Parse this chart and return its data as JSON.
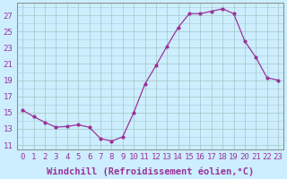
{
  "x": [
    0,
    1,
    2,
    3,
    4,
    5,
    6,
    7,
    8,
    9,
    10,
    11,
    12,
    13,
    14,
    15,
    16,
    17,
    18,
    19,
    20,
    21,
    22,
    23
  ],
  "y": [
    15.3,
    14.5,
    13.8,
    13.2,
    13.3,
    13.5,
    13.2,
    11.8,
    11.5,
    12.0,
    15.0,
    18.5,
    20.8,
    23.2,
    25.5,
    27.2,
    27.2,
    27.5,
    27.8,
    27.2,
    23.8,
    21.8,
    19.3,
    19.0
  ],
  "line_color": "#993399",
  "marker": ".",
  "marker_size": 4,
  "xlabel": "Windchill (Refroidissement éolien,°C)",
  "xlabel_fontsize": 7.5,
  "yticks": [
    11,
    13,
    15,
    17,
    19,
    21,
    23,
    25,
    27
  ],
  "xticks": [
    0,
    1,
    2,
    3,
    4,
    5,
    6,
    7,
    8,
    9,
    10,
    11,
    12,
    13,
    14,
    15,
    16,
    17,
    18,
    19,
    20,
    21,
    22,
    23
  ],
  "xlim": [
    -0.5,
    23.5
  ],
  "ylim": [
    10.5,
    28.5
  ],
  "background_color": "#cceeff",
  "grid_color": "#aacccc",
  "tick_color": "#993399",
  "tick_fontsize": 6.5,
  "spine_color": "#888888"
}
